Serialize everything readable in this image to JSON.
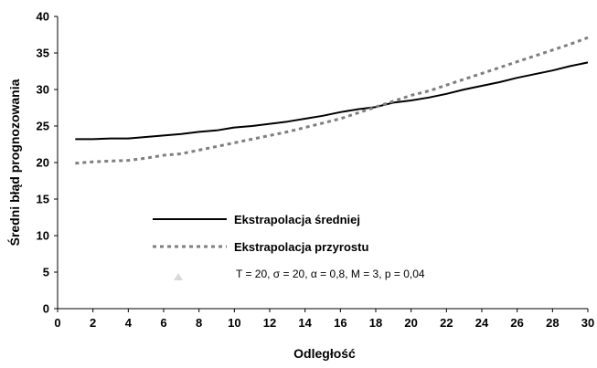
{
  "chart_data": {
    "type": "line",
    "title": "",
    "xlabel": "Odległość",
    "ylabel": "Średni błąd prognozowania",
    "xlim": [
      0,
      30
    ],
    "ylim": [
      0,
      40
    ],
    "x_ticks": [
      "0",
      "2",
      "4",
      "6",
      "8",
      "10",
      "12",
      "14",
      "16",
      "18",
      "20",
      "22",
      "24",
      "26",
      "28",
      "30"
    ],
    "y_ticks": [
      "0",
      "5",
      "10",
      "15",
      "20",
      "25",
      "30",
      "35",
      "40"
    ],
    "grid": false,
    "legend_position": "center-left",
    "x": [
      1,
      2,
      3,
      4,
      5,
      6,
      7,
      8,
      9,
      10,
      11,
      12,
      13,
      14,
      15,
      16,
      17,
      18,
      19,
      20,
      21,
      22,
      23,
      24,
      25,
      26,
      27,
      28,
      29,
      30
    ],
    "series": [
      {
        "name": "Ekstrapolacja średniej",
        "color": "#000000",
        "style": "solid",
        "values": [
          23.2,
          23.2,
          23.3,
          23.3,
          23.5,
          23.7,
          23.9,
          24.2,
          24.4,
          24.8,
          25.0,
          25.3,
          25.6,
          26.0,
          26.4,
          26.9,
          27.3,
          27.6,
          28.2,
          28.5,
          28.9,
          29.4,
          30.0,
          30.5,
          31.0,
          31.6,
          32.1,
          32.6,
          33.2,
          33.7
        ]
      },
      {
        "name": "Ekstrapolacja przyrostu",
        "color": "#7f7f7f",
        "style": "dotted",
        "values": [
          19.9,
          20.1,
          20.2,
          20.3,
          20.6,
          21.0,
          21.2,
          21.7,
          22.2,
          22.7,
          23.2,
          23.7,
          24.2,
          24.8,
          25.4,
          26.0,
          26.8,
          27.6,
          28.4,
          29.2,
          29.8,
          30.6,
          31.4,
          32.2,
          33.0,
          33.8,
          34.6,
          35.4,
          36.2,
          37.1
        ]
      }
    ],
    "annotation": {
      "marker": "triangle",
      "marker_color": "#d9d9d9",
      "text": "T = 20, σ = 20, α = 0,8, M = 3, p = 0,04"
    }
  }
}
